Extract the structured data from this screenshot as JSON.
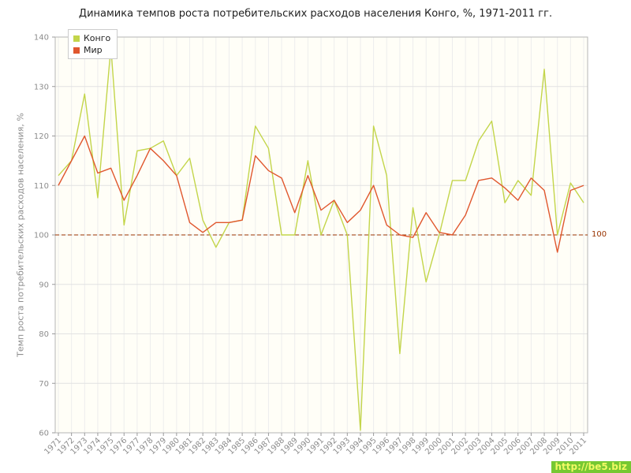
{
  "title": "Динамика темпов роста потребительских расходов населения Конго, %, 1971-2011 гг.",
  "watermark": "http://be5.biz",
  "chart_data": {
    "type": "line",
    "title": "Динамика темпов роста потребительских расходов населения Конго, %, 1971-2011 гг.",
    "xlabel": "",
    "ylabel": "Темп роста потребительских расходов населения, %",
    "ylim": [
      60,
      140
    ],
    "yticks": [
      60,
      70,
      80,
      90,
      100,
      110,
      120,
      130,
      140
    ],
    "grid": true,
    "legend_position": "top-left",
    "reference_line": {
      "value": 100,
      "label": "100",
      "color": "#993300"
    },
    "x": [
      1971,
      1972,
      1973,
      1974,
      1975,
      1976,
      1977,
      1978,
      1979,
      1980,
      1981,
      1982,
      1983,
      1984,
      1985,
      1986,
      1987,
      1988,
      1989,
      1990,
      1991,
      1992,
      1993,
      1994,
      1995,
      1996,
      1997,
      1998,
      1999,
      2000,
      2001,
      2002,
      2003,
      2004,
      2005,
      2006,
      2007,
      2008,
      2009,
      2010,
      2011
    ],
    "series": [
      {
        "name": "Конго",
        "color": "#c3d54a",
        "values": [
          112,
          115,
          128.5,
          107.5,
          138,
          102,
          117,
          117.5,
          119,
          112,
          115.5,
          103,
          97.5,
          102.5,
          103,
          122,
          117.5,
          100,
          100,
          115,
          100,
          107,
          100,
          60.5,
          122,
          112,
          76,
          105.5,
          90.5,
          100,
          111,
          111,
          119,
          123,
          106.5,
          111,
          108,
          133.5,
          100,
          110.5,
          106.5
        ]
      },
      {
        "name": "Мир",
        "color": "#e0572e",
        "values": [
          110,
          115,
          120,
          112.5,
          113.5,
          107,
          112,
          117.5,
          115,
          112,
          102.5,
          100.5,
          102.5,
          102.5,
          103,
          116,
          113,
          111.5,
          104.5,
          112,
          105,
          107,
          102.5,
          105,
          110,
          102,
          100,
          99.5,
          104.5,
          100.5,
          100,
          104,
          111,
          111.5,
          109.5,
          107,
          111.5,
          109,
          96.5,
          109,
          110
        ]
      }
    ]
  }
}
